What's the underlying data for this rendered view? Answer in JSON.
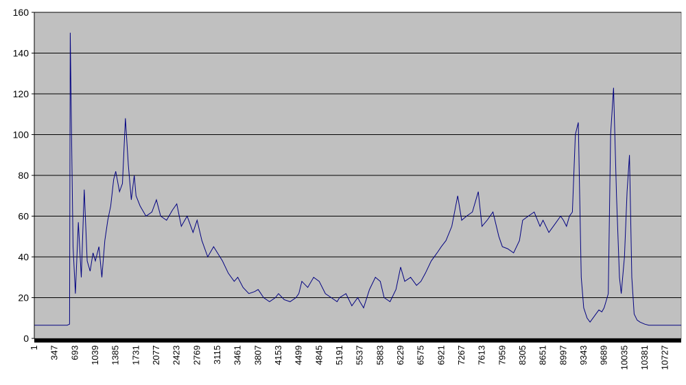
{
  "chart_data": {
    "type": "line",
    "title": "",
    "xlabel": "",
    "ylabel": "",
    "ylim": [
      0,
      160
    ],
    "xlim": [
      1,
      11000
    ],
    "grid": true,
    "legend": "none",
    "colors": {
      "plot_background": "#c0c0c0",
      "line": "#000080",
      "gridline": "#000000",
      "axis": "#000000"
    },
    "y_ticks": [
      "0",
      "20",
      "40",
      "60",
      "80",
      "100",
      "120",
      "140",
      "160"
    ],
    "y_tick_values": [
      0,
      20,
      40,
      60,
      80,
      100,
      120,
      140,
      160
    ],
    "x_ticks": [
      "1",
      "347",
      "693",
      "1039",
      "1385",
      "1731",
      "2077",
      "2423",
      "2769",
      "3115",
      "3461",
      "3807",
      "4153",
      "4499",
      "4845",
      "5191",
      "5537",
      "5883",
      "6229",
      "6575",
      "6921",
      "7267",
      "7613",
      "7959",
      "8305",
      "8651",
      "8997",
      "9343",
      "9689",
      "10035",
      "10381",
      "10727"
    ],
    "x_tick_values": [
      1,
      347,
      693,
      1039,
      1385,
      1731,
      2077,
      2423,
      2769,
      3115,
      3461,
      3807,
      4153,
      4499,
      4845,
      5191,
      5537,
      5883,
      6229,
      6575,
      6921,
      7267,
      7613,
      7959,
      8305,
      8651,
      8997,
      9343,
      9689,
      10035,
      10381,
      10727
    ],
    "series": [
      {
        "x": [
          1,
          100,
          200,
          300,
          400,
          500,
          560,
          600,
          612,
          630,
          660,
          700,
          750,
          800,
          850,
          900,
          950,
          1000,
          1039,
          1100,
          1150,
          1200,
          1250,
          1300,
          1350,
          1385,
          1450,
          1500,
          1550,
          1600,
          1650,
          1700,
          1731,
          1800,
          1900,
          2000,
          2077,
          2150,
          2250,
          2350,
          2423,
          2500,
          2600,
          2700,
          2769,
          2850,
          2950,
          3050,
          3115,
          3200,
          3300,
          3400,
          3461,
          3550,
          3650,
          3750,
          3807,
          3900,
          4000,
          4100,
          4153,
          4250,
          4350,
          4450,
          4499,
          4550,
          4650,
          4750,
          4845,
          4950,
          5050,
          5150,
          5191,
          5300,
          5400,
          5500,
          5537,
          5600,
          5700,
          5800,
          5883,
          5950,
          6050,
          6150,
          6229,
          6300,
          6400,
          6500,
          6575,
          6650,
          6750,
          6850,
          6921,
          7000,
          7100,
          7200,
          7267,
          7350,
          7450,
          7550,
          7613,
          7700,
          7800,
          7900,
          7959,
          8050,
          8150,
          8250,
          8305,
          8400,
          8500,
          8600,
          8651,
          8750,
          8850,
          8950,
          8997,
          9050,
          9100,
          9150,
          9200,
          9250,
          9300,
          9343,
          9400,
          9450,
          9500,
          9550,
          9600,
          9650,
          9689,
          9720,
          9760,
          9800,
          9850,
          9900,
          9950,
          9980,
          10035,
          10080,
          10120,
          10160,
          10200,
          10250,
          10300,
          10381,
          10450,
          10550,
          10650,
          10727,
          10850,
          10950,
          11000
        ],
        "values": [
          6.5,
          6.5,
          6.5,
          6.5,
          6.5,
          6.5,
          6.5,
          7,
          150,
          110,
          45,
          22,
          57,
          30,
          73,
          38,
          33,
          42,
          38,
          45,
          30,
          48,
          58,
          65,
          78,
          82,
          72,
          76,
          108,
          85,
          68,
          80,
          70,
          65,
          60,
          62,
          68,
          60,
          58,
          63,
          66,
          55,
          60,
          52,
          58,
          48,
          40,
          45,
          42,
          38,
          32,
          28,
          30,
          25,
          22,
          23,
          24,
          20,
          18,
          20,
          22,
          19,
          18,
          20,
          22,
          28,
          25,
          30,
          28,
          22,
          20,
          18,
          20,
          22,
          16,
          20,
          18,
          15,
          24,
          30,
          28,
          20,
          18,
          24,
          35,
          28,
          30,
          26,
          28,
          32,
          38,
          42,
          45,
          48,
          55,
          70,
          58,
          60,
          62,
          72,
          55,
          58,
          62,
          50,
          45,
          44,
          42,
          48,
          58,
          60,
          62,
          55,
          58,
          52,
          56,
          60,
          58,
          55,
          60,
          62,
          100,
          106,
          30,
          15,
          10,
          8,
          10,
          12,
          14,
          13,
          15,
          18,
          22,
          100,
          123,
          70,
          30,
          22,
          40,
          72,
          90,
          30,
          12,
          9,
          8,
          7,
          6.5,
          6.5,
          6.5,
          6.5,
          6.5,
          6.5,
          6.5
        ]
      }
    ]
  }
}
